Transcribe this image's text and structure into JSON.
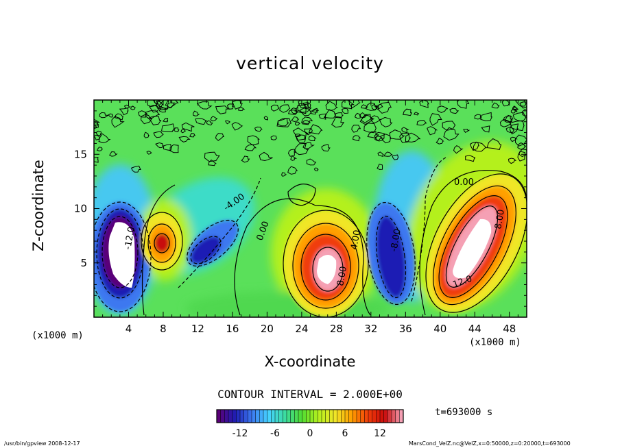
{
  "chart_data": {
    "type": "heatmap",
    "title": "vertical velocity",
    "xlabel": "X-coordinate",
    "ylabel": "Z-coordinate",
    "x_unit_label": "(x1000 m)",
    "xlim": [
      0,
      50
    ],
    "ylim": [
      0,
      20
    ],
    "x_ticks": [
      4,
      8,
      12,
      16,
      20,
      24,
      28,
      32,
      36,
      40,
      44,
      48
    ],
    "y_ticks": [
      5,
      10,
      15
    ],
    "contour_interval_label": "CONTOUR INTERVAL = 2.000E+00",
    "contour_labels": [
      "0.00",
      "-4.00",
      "4.00",
      "8.00",
      "-8.00",
      "12.0",
      "-12.0"
    ],
    "colorbar": {
      "range": [
        -16,
        16
      ],
      "ticks": [
        -12,
        -6,
        0,
        6,
        12
      ],
      "colors": [
        "#5a0078",
        "#1e1eb4",
        "#3c78f0",
        "#46d2ff",
        "#3cdca0",
        "#50dc32",
        "#b4f01e",
        "#f0e628",
        "#ffa000",
        "#f03c0a",
        "#c80a0a",
        "#f5a0b4"
      ]
    },
    "features": [
      {
        "x": 2.5,
        "z": 6.5,
        "value": -16
      },
      {
        "x": 7.8,
        "z": 6.8,
        "value": 12
      },
      {
        "x": 13.5,
        "z": 6.5,
        "value": -10
      },
      {
        "x": 27,
        "z": 5,
        "value": 16
      },
      {
        "x": 34,
        "z": 5.5,
        "value": -12
      },
      {
        "x": 43.5,
        "z": 6,
        "value": 16
      }
    ]
  },
  "time_label": "t=693000 s",
  "footer_left": "/usr/bin/gpview   2008-12-17",
  "footer_right": "MarsCond_VelZ.nc@VelZ,x=0:50000,z=0:20000,t=693000"
}
